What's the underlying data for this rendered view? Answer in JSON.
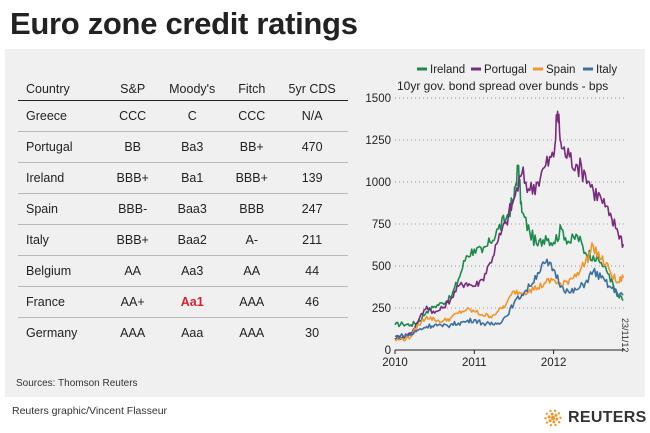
{
  "title": "Euro zone credit ratings",
  "table": {
    "headers": [
      "Country",
      "S&P",
      "Moody's",
      "Fitch",
      "5yr CDS"
    ],
    "rows": [
      [
        "Greece",
        "CCC",
        "C",
        "CCC",
        "N/A"
      ],
      [
        "Portugal",
        "BB",
        "Ba3",
        "BB+",
        "470"
      ],
      [
        "Ireland",
        "BBB+",
        "Ba1",
        "BBB+",
        "139"
      ],
      [
        "Spain",
        "BBB-",
        "Baa3",
        "BBB",
        "247"
      ],
      [
        "Italy",
        "BBB+",
        "Baa2",
        "A-",
        "211"
      ],
      [
        "Belgium",
        "AA",
        "Aa3",
        "AA",
        "44"
      ],
      [
        "France",
        "AA+",
        "Aa1",
        "AAA",
        "46"
      ],
      [
        "Germany",
        "AAA",
        "Aaa",
        "AAA",
        "30"
      ]
    ],
    "highlight_cell": {
      "row": 6,
      "col": 2
    }
  },
  "sources": "Sources: Thomson Reuters",
  "credit": "Reuters graphic/Vincent Flasseur",
  "logo_text": "REUTERS",
  "datestamp": "23/11/12",
  "colors": {
    "ireland": "#1b8a4c",
    "portugal": "#7a2a7f",
    "spain": "#f0962e",
    "italy": "#3d6f9e",
    "highlight": "#d0242f",
    "logo": "#f0962e"
  },
  "chart_data": {
    "type": "line",
    "title": "10yr gov. bond spread over bunds - bps",
    "xlabel": "",
    "ylabel": "",
    "x_ticks": [
      "2010",
      "2011",
      "2012"
    ],
    "y_ticks": [
      0,
      250,
      500,
      750,
      1000,
      1250,
      1500
    ],
    "ylim": [
      0,
      1500
    ],
    "x_range": [
      2010.0,
      2012.9
    ],
    "grid": true,
    "legend_position": "top",
    "series": [
      {
        "name": "Ireland",
        "color": "#1b8a4c",
        "x": [
          2010.0,
          2010.1,
          2010.2,
          2010.3,
          2010.4,
          2010.5,
          2010.6,
          2010.7,
          2010.8,
          2010.9,
          2011.0,
          2011.1,
          2011.2,
          2011.3,
          2011.4,
          2011.5,
          2011.55,
          2011.6,
          2011.7,
          2011.8,
          2011.9,
          2012.0,
          2012.1,
          2012.2,
          2012.3,
          2012.4,
          2012.5,
          2012.6,
          2012.7,
          2012.8,
          2012.88
        ],
        "values": [
          150,
          155,
          150,
          170,
          230,
          260,
          280,
          310,
          420,
          560,
          600,
          580,
          640,
          720,
          780,
          900,
          1100,
          820,
          700,
          620,
          680,
          640,
          720,
          640,
          680,
          580,
          560,
          520,
          450,
          320,
          300
        ]
      },
      {
        "name": "Portugal",
        "color": "#7a2a7f",
        "x": [
          2010.0,
          2010.1,
          2010.2,
          2010.3,
          2010.4,
          2010.5,
          2010.6,
          2010.7,
          2010.8,
          2010.9,
          2011.0,
          2011.1,
          2011.2,
          2011.3,
          2011.4,
          2011.5,
          2011.6,
          2011.7,
          2011.8,
          2011.9,
          2012.0,
          2012.05,
          2012.1,
          2012.2,
          2012.3,
          2012.4,
          2012.5,
          2012.6,
          2012.7,
          2012.8,
          2012.88
        ],
        "values": [
          70,
          80,
          100,
          180,
          260,
          220,
          250,
          300,
          380,
          400,
          380,
          420,
          520,
          650,
          760,
          900,
          1050,
          950,
          1000,
          1100,
          1150,
          1420,
          1200,
          1150,
          1100,
          1050,
          950,
          900,
          800,
          720,
          630
        ]
      },
      {
        "name": "Spain",
        "color": "#f0962e",
        "x": [
          2010.0,
          2010.1,
          2010.2,
          2010.3,
          2010.4,
          2010.5,
          2010.6,
          2010.7,
          2010.8,
          2010.9,
          2011.0,
          2011.1,
          2011.2,
          2011.3,
          2011.4,
          2011.5,
          2011.6,
          2011.7,
          2011.8,
          2011.9,
          2012.0,
          2012.1,
          2012.2,
          2012.3,
          2012.4,
          2012.5,
          2012.6,
          2012.7,
          2012.8,
          2012.88
        ],
        "values": [
          60,
          65,
          80,
          150,
          200,
          180,
          170,
          190,
          220,
          240,
          230,
          210,
          200,
          230,
          270,
          350,
          340,
          360,
          370,
          400,
          420,
          380,
          420,
          460,
          520,
          620,
          540,
          480,
          400,
          430
        ]
      },
      {
        "name": "Italy",
        "color": "#3d6f9e",
        "x": [
          2010.0,
          2010.1,
          2010.2,
          2010.3,
          2010.4,
          2010.5,
          2010.6,
          2010.7,
          2010.8,
          2010.9,
          2011.0,
          2011.1,
          2011.2,
          2011.3,
          2011.4,
          2011.5,
          2011.6,
          2011.7,
          2011.8,
          2011.9,
          2012.0,
          2012.1,
          2012.2,
          2012.3,
          2012.4,
          2012.5,
          2012.6,
          2012.7,
          2012.8,
          2012.88
        ],
        "values": [
          80,
          85,
          90,
          120,
          140,
          150,
          140,
          150,
          160,
          170,
          180,
          160,
          150,
          160,
          200,
          280,
          330,
          380,
          460,
          520,
          480,
          380,
          340,
          360,
          400,
          470,
          430,
          380,
          340,
          330
        ]
      }
    ]
  }
}
